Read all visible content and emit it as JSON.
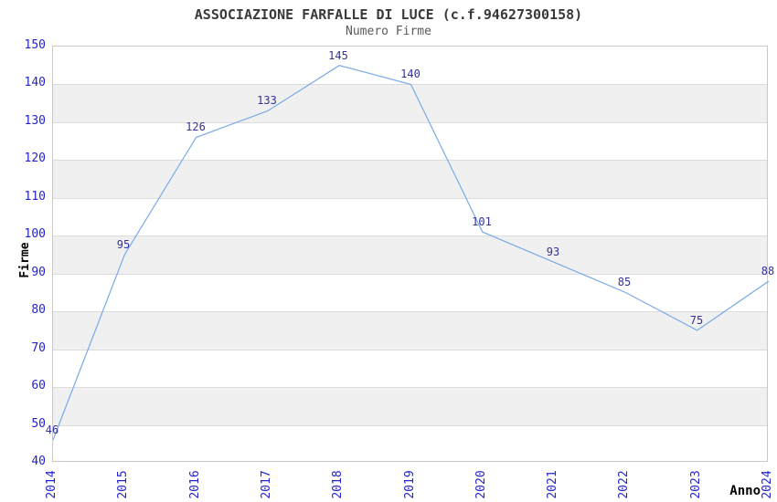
{
  "chart": {
    "title": "ASSOCIAZIONE FARFALLE DI LUCE (c.f.94627300158)",
    "subtitle": "Numero Firme",
    "ylabel": "Firme",
    "xlabel": "Anno"
  },
  "chart_data": {
    "type": "line",
    "title": "ASSOCIAZIONE FARFALLE DI LUCE (c.f.94627300158)",
    "subtitle": "Numero Firme",
    "xlabel": "Anno",
    "ylabel": "Firme",
    "x": [
      "2014",
      "2015",
      "2016",
      "2017",
      "2018",
      "2019",
      "2020",
      "2021",
      "2022",
      "2023",
      "2024"
    ],
    "values": [
      46,
      95,
      126,
      133,
      145,
      140,
      101,
      93,
      85,
      75,
      88
    ],
    "point_labels": [
      "46",
      "95",
      "126",
      "133",
      "145",
      "140",
      "101",
      "93",
      "85",
      "75",
      "88"
    ],
    "ylim": [
      40,
      150
    ],
    "ytick_step": 10,
    "yticks": [
      40,
      50,
      60,
      70,
      80,
      90,
      100,
      110,
      120,
      130,
      140,
      150
    ],
    "grid": "horizontal",
    "banding": "alternating-rows",
    "legend": "none",
    "colors": {
      "line": "#7aaae8",
      "band": "#f0f0f0",
      "grid": "#dcdcdc",
      "plot_border": "#c9c9c9",
      "tick_label": "#2424cd",
      "point_label": "#32329a",
      "title": "#3a3a3a",
      "subtitle": "#5a5a5a",
      "axis_title": "#000000",
      "background": "#ffffff"
    }
  }
}
